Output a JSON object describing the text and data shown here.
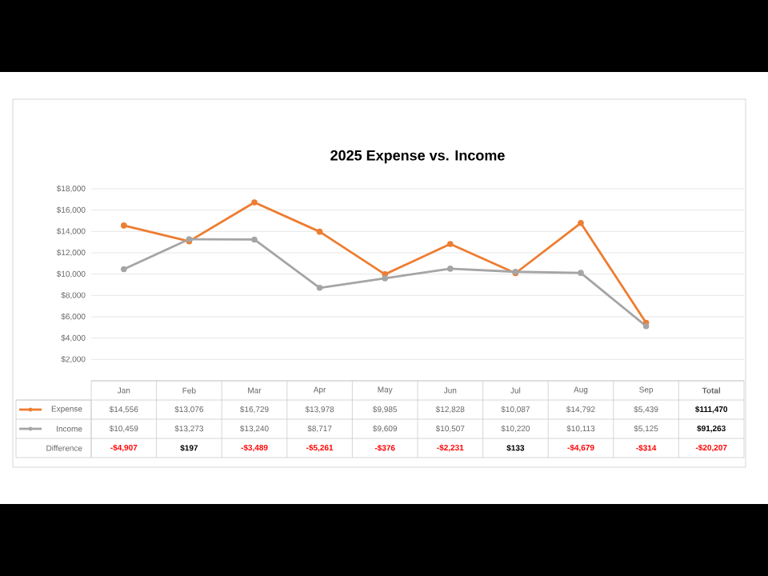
{
  "chart_data": {
    "type": "line",
    "title": "2025 Expense vs. Income",
    "categories": [
      "Jan",
      "Feb",
      "Mar",
      "Apr",
      "May",
      "Jun",
      "Jul",
      "Aug",
      "Sep",
      "Total"
    ],
    "series": [
      {
        "name": "Expense",
        "color": "#ed7d31",
        "values": [
          14556,
          13076,
          16729,
          13978,
          9985,
          12828,
          10087,
          14792,
          5439,
          null
        ],
        "value_labels": [
          "$14,556",
          "$13,076",
          "$16,729",
          "$13,978",
          "$9,985",
          "$12,828",
          "$10,087",
          "$14,792",
          "$5,439",
          "$111,470"
        ]
      },
      {
        "name": "Income",
        "color": "#a5a5a5",
        "values": [
          10459,
          13273,
          13240,
          8717,
          9609,
          10507,
          10220,
          10113,
          5125,
          null
        ],
        "value_labels": [
          "$10,459",
          "$13,273",
          "$13,240",
          "$8,717",
          "$9,609",
          "$10,507",
          "$10,220",
          "$10,113",
          "$5,125",
          "$91,263"
        ]
      },
      {
        "name": "Difference",
        "colors": [
          "#ff0000",
          "#000000",
          "#ff0000",
          "#ff0000",
          "#ff0000",
          "#ff0000",
          "#000000",
          "#ff0000",
          "#ff0000",
          "#ff0000"
        ],
        "values": [
          null,
          null,
          null,
          null,
          null,
          null,
          null,
          null,
          null,
          null
        ],
        "value_labels": [
          "-$4,907",
          "$197",
          "-$3,489",
          "-$5,261",
          "-$376",
          "-$2,231",
          "$133",
          "-$4,679",
          "-$314",
          "-$20,207"
        ]
      }
    ],
    "ylim": [
      0,
      18000
    ],
    "yticks": [
      {
        "value": 2000,
        "label": "$2,000"
      },
      {
        "value": 4000,
        "label": "$4,000"
      },
      {
        "value": 6000,
        "label": "$6,000"
      },
      {
        "value": 8000,
        "label": "$8,000"
      },
      {
        "value": 10000,
        "label": "$10,000"
      },
      {
        "value": 12000,
        "label": "$12,000"
      },
      {
        "value": 14000,
        "label": "$14,000"
      },
      {
        "value": 16000,
        "label": "$16,000"
      },
      {
        "value": 18000,
        "label": "$18,000"
      }
    ],
    "grid": "y",
    "legend": "bottom left",
    "marker": "circle",
    "line_style": "solid"
  }
}
